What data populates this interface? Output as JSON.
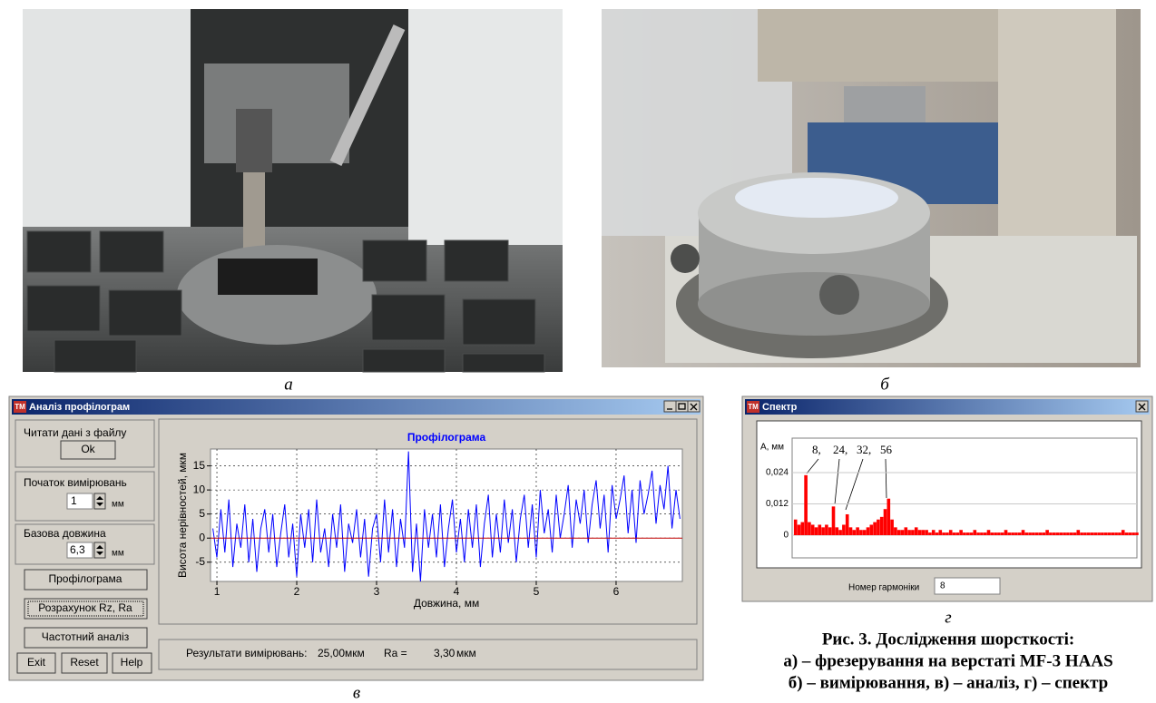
{
  "figure": {
    "panel_labels": [
      "а",
      "б",
      "в",
      "г"
    ],
    "caption": [
      "Рис. 3. Дослідження шорсткості:",
      "а) – фрезерування на верстаті MF-3 HAAS",
      "б) – вимірювання, в) – аналіз, г) – спектр"
    ]
  },
  "profile_window": {
    "app_icon": "TM",
    "title": "Аналіз профілограм",
    "read_label": "Читати дані з файлу",
    "ok": "Ok",
    "start_label": "Початок вимірювань",
    "start_value": "1",
    "start_unit": "мм",
    "base_label": "Базова довжина",
    "base_value": "6,3",
    "base_unit": "мм",
    "buttons": [
      "Профілограма",
      "Розрахунок Rz, Ra",
      "Частотний аналіз"
    ],
    "bottom_buttons": [
      "Exit",
      "Reset",
      "Help"
    ],
    "results_label": "Результати вимірювань:",
    "rz": "25,00мкм",
    "ra_label": "Ra =",
    "ra": "3,30",
    "ra_unit": "мкм",
    "chart_data": {
      "type": "line",
      "title": "Профілограма",
      "xlabel": "Довжина, мм",
      "ylabel": "Висота нерівностей, мкм",
      "color": "#0000ff",
      "reference_y": 0,
      "reference_color": "#c00000",
      "grid": true,
      "xlim": [
        0.92,
        6.83
      ],
      "ylim": [
        -9,
        18.5
      ],
      "xticks": [
        1,
        2,
        3,
        4,
        5,
        6
      ],
      "yticks": [
        -5,
        0,
        5,
        10,
        15
      ],
      "x": [
        0.95,
        1,
        1.05,
        1.1,
        1.15,
        1.2,
        1.25,
        1.3,
        1.35,
        1.4,
        1.45,
        1.5,
        1.55,
        1.6,
        1.65,
        1.7,
        1.75,
        1.8,
        1.85,
        1.9,
        1.95,
        2,
        2.05,
        2.1,
        2.15,
        2.2,
        2.25,
        2.3,
        2.35,
        2.4,
        2.45,
        2.5,
        2.55,
        2.6,
        2.65,
        2.7,
        2.75,
        2.8,
        2.85,
        2.9,
        2.95,
        3,
        3.05,
        3.1,
        3.15,
        3.2,
        3.25,
        3.3,
        3.35,
        3.4,
        3.45,
        3.5,
        3.55,
        3.6,
        3.65,
        3.7,
        3.75,
        3.8,
        3.85,
        3.9,
        3.95,
        4,
        4.05,
        4.1,
        4.15,
        4.2,
        4.25,
        4.3,
        4.35,
        4.4,
        4.45,
        4.5,
        4.55,
        4.6,
        4.65,
        4.7,
        4.75,
        4.8,
        4.85,
        4.9,
        4.95,
        5,
        5.05,
        5.1,
        5.15,
        5.2,
        5.25,
        5.3,
        5.35,
        5.4,
        5.45,
        5.5,
        5.55,
        5.6,
        5.65,
        5.7,
        5.75,
        5.8,
        5.85,
        5.9,
        5.95,
        6,
        6.05,
        6.1,
        6.15,
        6.2,
        6.25,
        6.3,
        6.35,
        6.4,
        6.45,
        6.5,
        6.55,
        6.6,
        6.65,
        6.7,
        6.75,
        6.8
      ],
      "values": [
        2,
        -4,
        6,
        -3,
        8,
        -6,
        3,
        -2,
        7,
        -5,
        4,
        -7,
        2,
        6,
        -3,
        5,
        -6,
        1,
        7,
        -4,
        3,
        -8,
        5,
        -2,
        6,
        -5,
        8,
        -3,
        2,
        -6,
        5,
        -2,
        7,
        -7,
        3,
        -1,
        6,
        -4,
        4,
        -8,
        2,
        5,
        -5,
        8,
        -3,
        6,
        -6,
        4,
        -2,
        18,
        -7,
        3,
        -9,
        6,
        -2,
        5,
        -4,
        7,
        -6,
        2,
        8,
        -3,
        4,
        -5,
        6,
        -2,
        7,
        -6,
        3,
        9,
        -4,
        5,
        -3,
        8,
        -1,
        6,
        -5,
        4,
        9,
        -2,
        7,
        -4,
        10,
        1,
        6,
        -3,
        9,
        0,
        5,
        11,
        -2,
        8,
        3,
        10,
        -1,
        7,
        12,
        2,
        9,
        -3,
        11,
        4,
        8,
        13,
        1,
        10,
        -1,
        12,
        5,
        9,
        14,
        3,
        11,
        6,
        15,
        2,
        10,
        4
      ]
    }
  },
  "spectrum_window": {
    "app_icon": "TM",
    "title": "Спектр",
    "harmonic_label": "Номер гармоніки",
    "harmonic_value": "8",
    "chart_data": {
      "type": "bar",
      "ylabel": "А, мм",
      "color": "#ff0000",
      "grid": true,
      "annotations": [
        "8,",
        "24,",
        "32,",
        "56"
      ],
      "xlim": [
        0,
        200
      ],
      "ylim": [
        -0.0087,
        0.0372
      ],
      "yticks": [
        0,
        {
          "value": 0.012,
          "label": "0,012"
        },
        {
          "value": 0.024,
          "label": "0,024"
        }
      ],
      "x": [
        2,
        4,
        6,
        8,
        10,
        12,
        14,
        16,
        18,
        20,
        22,
        24,
        26,
        28,
        30,
        32,
        34,
        36,
        38,
        40,
        42,
        44,
        46,
        48,
        50,
        52,
        54,
        56,
        58,
        60,
        62,
        64,
        66,
        68,
        70,
        72,
        74,
        76,
        78,
        80,
        82,
        84,
        86,
        88,
        90,
        92,
        94,
        96,
        98,
        100,
        102,
        104,
        106,
        108,
        110,
        112,
        114,
        116,
        118,
        120,
        122,
        124,
        126,
        128,
        130,
        132,
        134,
        136,
        138,
        140,
        142,
        144,
        146,
        148,
        150,
        152,
        154,
        156,
        158,
        160,
        162,
        164,
        166,
        168,
        170,
        172,
        174,
        176,
        178,
        180,
        182,
        184,
        186,
        188,
        190,
        192,
        194,
        196,
        198,
        200
      ],
      "values": [
        0.006,
        0.004,
        0.005,
        0.023,
        0.005,
        0.004,
        0.003,
        0.004,
        0.003,
        0.004,
        0.003,
        0.011,
        0.003,
        0.002,
        0.004,
        0.008,
        0.003,
        0.002,
        0.003,
        0.002,
        0.002,
        0.003,
        0.004,
        0.005,
        0.006,
        0.007,
        0.01,
        0.014,
        0.006,
        0.003,
        0.002,
        0.002,
        0.003,
        0.002,
        0.002,
        0.003,
        0.002,
        0.002,
        0.002,
        0.001,
        0.002,
        0.001,
        0.002,
        0.001,
        0.001,
        0.002,
        0.001,
        0.001,
        0.002,
        0.001,
        0.001,
        0.001,
        0.002,
        0.001,
        0.001,
        0.001,
        0.002,
        0.001,
        0.001,
        0.001,
        0.001,
        0.002,
        0.001,
        0.001,
        0.001,
        0.001,
        0.002,
        0.001,
        0.001,
        0.001,
        0.001,
        0.001,
        0.001,
        0.002,
        0.001,
        0.001,
        0.001,
        0.001,
        0.001,
        0.001,
        0.001,
        0.001,
        0.002,
        0.001,
        0.001,
        0.001,
        0.001,
        0.001,
        0.001,
        0.001,
        0.001,
        0.001,
        0.001,
        0.001,
        0.001,
        0.002,
        0.001,
        0.001,
        0.001,
        0.001
      ]
    }
  }
}
